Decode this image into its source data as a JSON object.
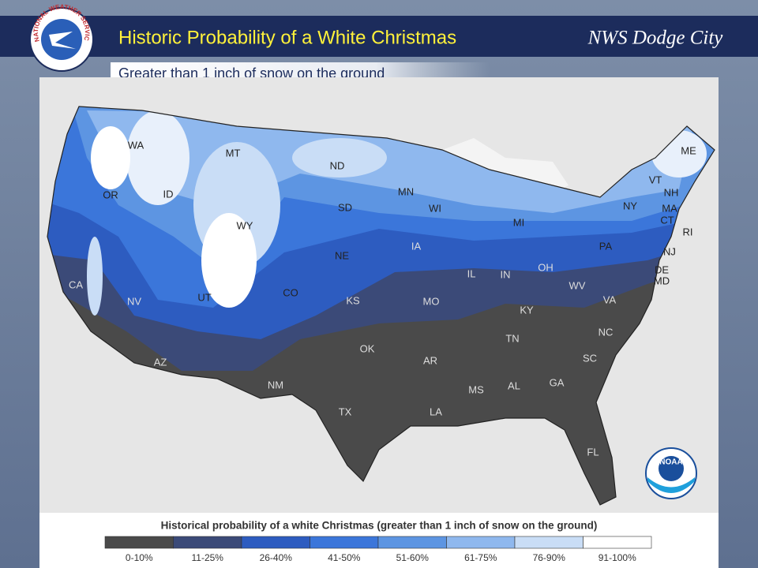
{
  "header": {
    "title": "Historic Probability of a White Christmas",
    "subtitle": "Greater than 1 inch of snow on the ground",
    "office": "NWS Dodge City",
    "nws_logo_text": "NATIONAL WEATHER SERVICE"
  },
  "map": {
    "noaa_logo_text": "NOAA",
    "state_labels": [
      "WA",
      "OR",
      "ID",
      "MT",
      "WY",
      "ND",
      "SD",
      "NE",
      "KS",
      "OK",
      "TX",
      "NM",
      "AZ",
      "UT",
      "NV",
      "CA",
      "CO",
      "MN",
      "IA",
      "MO",
      "AR",
      "LA",
      "MS",
      "AL",
      "GA",
      "FL",
      "SC",
      "NC",
      "TN",
      "KY",
      "IL",
      "IN",
      "OH",
      "MI",
      "WI",
      "PA",
      "NY",
      "VT",
      "NH",
      "ME",
      "MA",
      "CT",
      "RI",
      "NJ",
      "DE",
      "MD",
      "WV",
      "VA"
    ]
  },
  "legend": {
    "title": "Historical probability of a white Christmas (greater than 1 inch of snow on the ground)",
    "items": [
      {
        "label": "0-10%",
        "color": "#4a4a4a"
      },
      {
        "label": "11-25%",
        "color": "#3b4a78"
      },
      {
        "label": "26-40%",
        "color": "#2d5cc0"
      },
      {
        "label": "41-50%",
        "color": "#3b76da"
      },
      {
        "label": "51-60%",
        "color": "#5d95e2"
      },
      {
        "label": "61-75%",
        "color": "#8fb8ee"
      },
      {
        "label": "76-90%",
        "color": "#c9ddf6"
      },
      {
        "label": "91-100%",
        "color": "#ffffff"
      }
    ]
  }
}
